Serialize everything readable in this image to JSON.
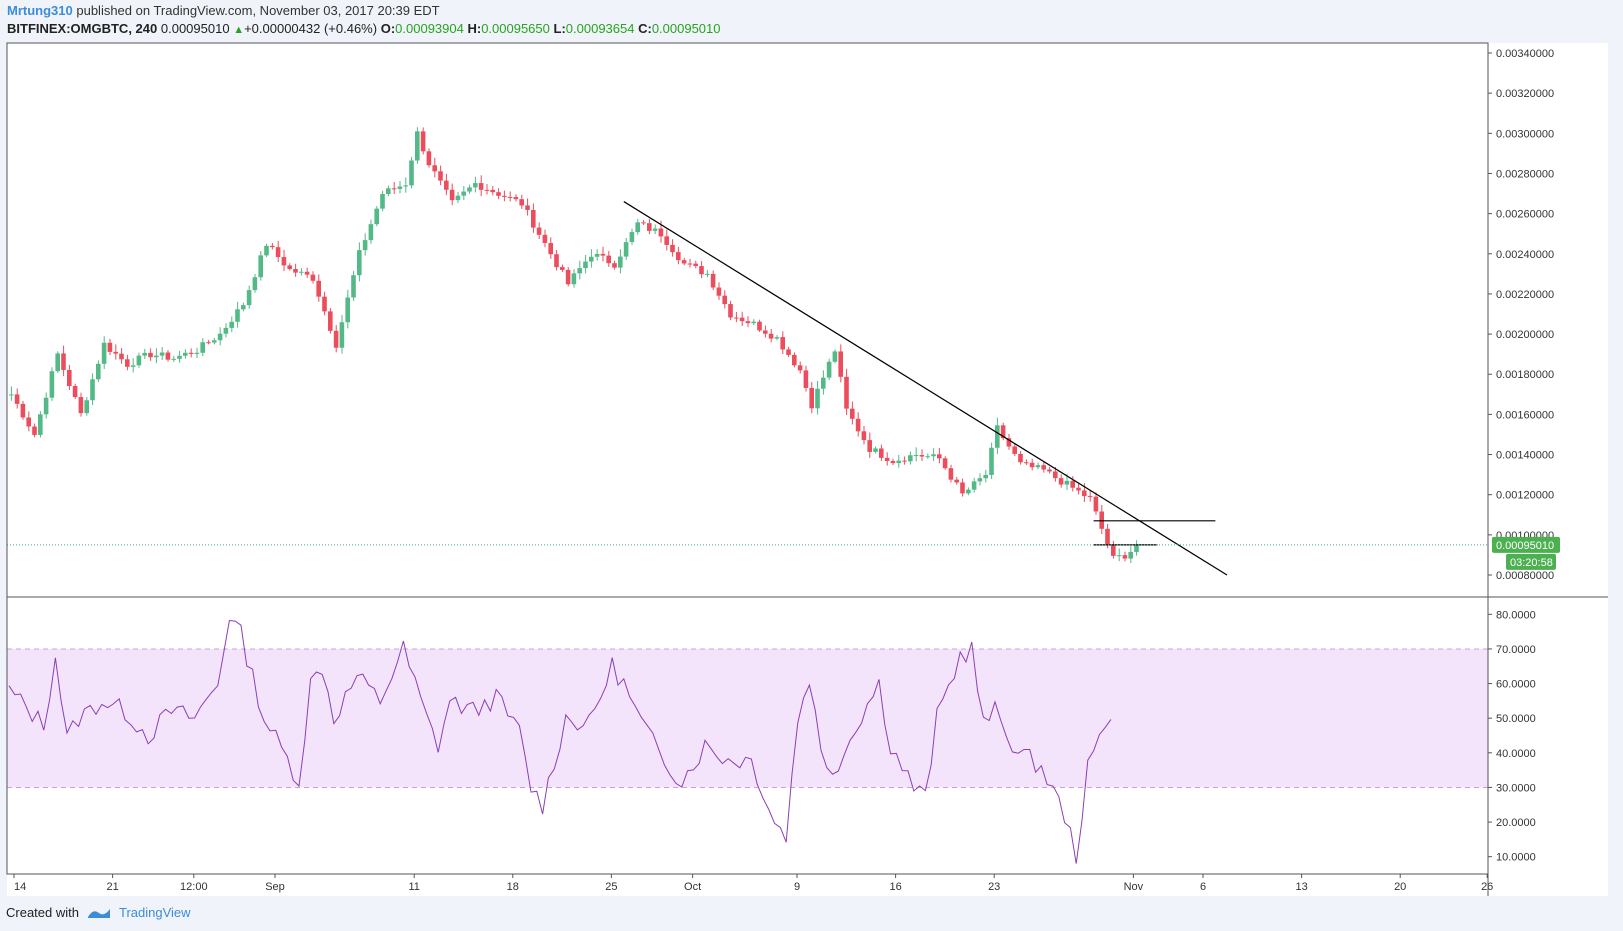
{
  "header": {
    "author": "Mrtung310",
    "published": "published on TradingView.com, November 03, 2017 20:39 EDT",
    "symbol": "BITFINEX:OMGBTC, 240",
    "last": "0.00095010",
    "change": "+0.00000432 (+0.46%)",
    "o_label": "O:",
    "o_value": "0.00093904",
    "h_label": "H:",
    "h_value": "0.00095650",
    "l_label": "L:",
    "l_value": "0.00093654",
    "c_label": "C:",
    "c_value": "0.00095010"
  },
  "footer": {
    "created_with": "Created with",
    "brand": "TradingView"
  },
  "colors": {
    "up": "#53b987",
    "down": "#eb4d5c",
    "rsi": "#8b3fb5",
    "rsi_band": "#f3e4fb",
    "price_badge": "#4caf50",
    "trendline": "#000000",
    "price_line": "#3cae89"
  },
  "chart_data": [
    {
      "type": "candlestick",
      "title": "BITFINEX:OMGBTC, 240",
      "ylim": [
        0.0008,
        0.0034
      ],
      "y_ticks": [
        "0.00340000",
        "0.00320000",
        "0.00300000",
        "0.00280000",
        "0.00260000",
        "0.00240000",
        "0.00220000",
        "0.00200000",
        "0.00180000",
        "0.00160000",
        "0.00140000",
        "0.00120000",
        "0.00100000",
        "0.00080000"
      ],
      "x_ticks": [
        "14",
        "21",
        "12:00",
        "Sep",
        "11",
        "18",
        "25",
        "Oct",
        "9",
        "16",
        "23",
        "Nov",
        "6",
        "13",
        "20",
        "26"
      ],
      "current_price": 0.0009501,
      "current_price_label": "0.00095010",
      "countdown_label": "03:20:58",
      "price_path_keypoints": [
        [
          0,
          0.0017
        ],
        [
          4,
          0.0015
        ],
        [
          8,
          0.0019
        ],
        [
          12,
          0.0016
        ],
        [
          16,
          0.00195
        ],
        [
          20,
          0.00185
        ],
        [
          24,
          0.0019
        ],
        [
          28,
          0.00188
        ],
        [
          32,
          0.00192
        ],
        [
          36,
          0.002
        ],
        [
          40,
          0.00215
        ],
        [
          44,
          0.00245
        ],
        [
          48,
          0.00232
        ],
        [
          52,
          0.00228
        ],
        [
          56,
          0.00195
        ],
        [
          60,
          0.0024
        ],
        [
          64,
          0.0027
        ],
        [
          68,
          0.00275
        ],
        [
          70,
          0.003
        ],
        [
          72,
          0.00285
        ],
        [
          76,
          0.00265
        ],
        [
          80,
          0.00275
        ],
        [
          84,
          0.0027
        ],
        [
          88,
          0.00265
        ],
        [
          92,
          0.00245
        ],
        [
          96,
          0.00225
        ],
        [
          100,
          0.0024
        ],
        [
          104,
          0.00235
        ],
        [
          108,
          0.00255
        ],
        [
          112,
          0.0025
        ],
        [
          116,
          0.00235
        ],
        [
          120,
          0.0023
        ],
        [
          124,
          0.0021
        ],
        [
          128,
          0.00205
        ],
        [
          132,
          0.00198
        ],
        [
          136,
          0.00182
        ],
        [
          138,
          0.00165
        ],
        [
          142,
          0.00192
        ],
        [
          144,
          0.00162
        ],
        [
          148,
          0.00143
        ],
        [
          152,
          0.00137
        ],
        [
          156,
          0.0014
        ],
        [
          160,
          0.00138
        ],
        [
          164,
          0.0012
        ],
        [
          168,
          0.0013
        ],
        [
          170,
          0.00153
        ],
        [
          174,
          0.00135
        ],
        [
          178,
          0.00132
        ],
        [
          182,
          0.00125
        ],
        [
          186,
          0.00118
        ],
        [
          190,
          0.00088
        ],
        [
          192,
          0.0009
        ],
        [
          194,
          0.00094
        ]
      ],
      "bars": 195,
      "trendlines": [
        {
          "from": [
            106,
            0.00266
          ],
          "to": [
            210,
            0.0008
          ]
        },
        {
          "from": [
            187,
            0.00107
          ],
          "to": [
            208,
            0.00107
          ]
        },
        {
          "from": [
            187,
            0.00095
          ],
          "to": [
            198,
            0.00095
          ]
        }
      ]
    },
    {
      "type": "line",
      "title": "RSI",
      "ylim": [
        5,
        85
      ],
      "y_ticks": [
        "80.0000",
        "70.0000",
        "60.0000",
        "50.0000",
        "40.0000",
        "30.0000",
        "20.0000",
        "10.0000"
      ],
      "band": [
        30,
        70
      ],
      "rsi_path_keypoints": [
        [
          0,
          58
        ],
        [
          6,
          48
        ],
        [
          8,
          68
        ],
        [
          10,
          44
        ],
        [
          12,
          50
        ],
        [
          16,
          55
        ],
        [
          20,
          52
        ],
        [
          24,
          45
        ],
        [
          28,
          52
        ],
        [
          32,
          50
        ],
        [
          36,
          60
        ],
        [
          38,
          80
        ],
        [
          40,
          74
        ],
        [
          44,
          50
        ],
        [
          48,
          38
        ],
        [
          50,
          32
        ],
        [
          52,
          60
        ],
        [
          54,
          65
        ],
        [
          56,
          50
        ],
        [
          60,
          62
        ],
        [
          64,
          55
        ],
        [
          68,
          70
        ],
        [
          72,
          50
        ],
        [
          74,
          42
        ],
        [
          76,
          55
        ],
        [
          80,
          52
        ],
        [
          84,
          56
        ],
        [
          88,
          46
        ],
        [
          90,
          30
        ],
        [
          92,
          25
        ],
        [
          96,
          50
        ],
        [
          100,
          48
        ],
        [
          104,
          65
        ],
        [
          106,
          60
        ],
        [
          108,
          52
        ],
        [
          112,
          40
        ],
        [
          116,
          32
        ],
        [
          120,
          42
        ],
        [
          124,
          38
        ],
        [
          128,
          38
        ],
        [
          132,
          20
        ],
        [
          134,
          16
        ],
        [
          136,
          50
        ],
        [
          138,
          62
        ],
        [
          140,
          40
        ],
        [
          142,
          35
        ],
        [
          144,
          40
        ],
        [
          146,
          48
        ],
        [
          150,
          60
        ],
        [
          152,
          42
        ],
        [
          156,
          30
        ],
        [
          158,
          27
        ],
        [
          160,
          50
        ],
        [
          164,
          68
        ],
        [
          166,
          70
        ],
        [
          168,
          48
        ],
        [
          170,
          52
        ],
        [
          174,
          40
        ],
        [
          178,
          36
        ],
        [
          182,
          22
        ],
        [
          184,
          10
        ],
        [
          186,
          35
        ],
        [
          188,
          44
        ],
        [
          190,
          52
        ]
      ]
    }
  ]
}
